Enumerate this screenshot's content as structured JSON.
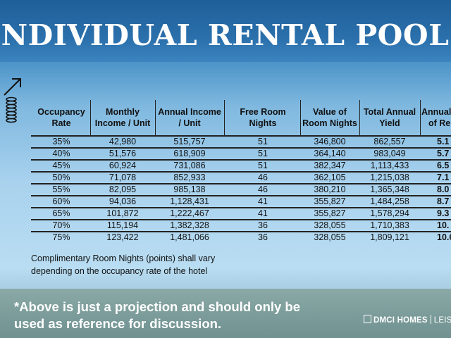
{
  "banner": {
    "title": "INDIVIDUAL RENTAL POOL PROGRAM"
  },
  "table": {
    "headers": [
      [
        "Occupancy",
        "Rate"
      ],
      [
        "Monthly",
        "Income / Unit"
      ],
      [
        "Annual Income",
        "/ Unit"
      ],
      [
        "Free Room",
        "Nights"
      ],
      [
        "Value of",
        "Room Nights"
      ],
      [
        "Total Annual",
        "Yield"
      ],
      [
        "Annual",
        "of Re"
      ]
    ],
    "rows": [
      [
        "35%",
        "42,980",
        "515,757",
        "51",
        "346,800",
        "862,557",
        "5.1"
      ],
      [
        "40%",
        "51,576",
        "618,909",
        "51",
        "364,140",
        "983,049",
        "5.7"
      ],
      [
        "45%",
        "60,924",
        "731,086",
        "51",
        "382,347",
        "1,113,433",
        "6.5"
      ],
      [
        "50%",
        "71,078",
        "852,933",
        "46",
        "362,105",
        "1,215,038",
        "7.1"
      ],
      [
        "55%",
        "82,095",
        "985,138",
        "46",
        "380,210",
        "1,365,348",
        "8.0"
      ],
      [
        "60%",
        "94,036",
        "1,128,431",
        "41",
        "355,827",
        "1,484,258",
        "8.7"
      ],
      [
        "65%",
        "101,872",
        "1,222,467",
        "41",
        "355,827",
        "1,578,294",
        "9.3"
      ],
      [
        "70%",
        "115,194",
        "1,382,328",
        "36",
        "328,055",
        "1,710,383",
        "10."
      ],
      [
        "75%",
        "123,422",
        "1,481,066",
        "36",
        "328,055",
        "1,809,121",
        "10.6"
      ]
    ]
  },
  "note": {
    "line1": "Complimentary Room Nights (points) shall vary",
    "line2": "depending on the occupancy rate of the hotel"
  },
  "footer": {
    "disclaimer_line1": "*Above is just a projection and should only be",
    "disclaimer_line2": "used as reference for discussion.",
    "brand_name": "DMCI HOMES",
    "brand_sub": "LEISU"
  },
  "colors": {
    "banner": "#2a6fab",
    "footer": "#7b9d9b",
    "text": "#111111"
  },
  "icons": [
    "coin-stack-growth-icon"
  ]
}
